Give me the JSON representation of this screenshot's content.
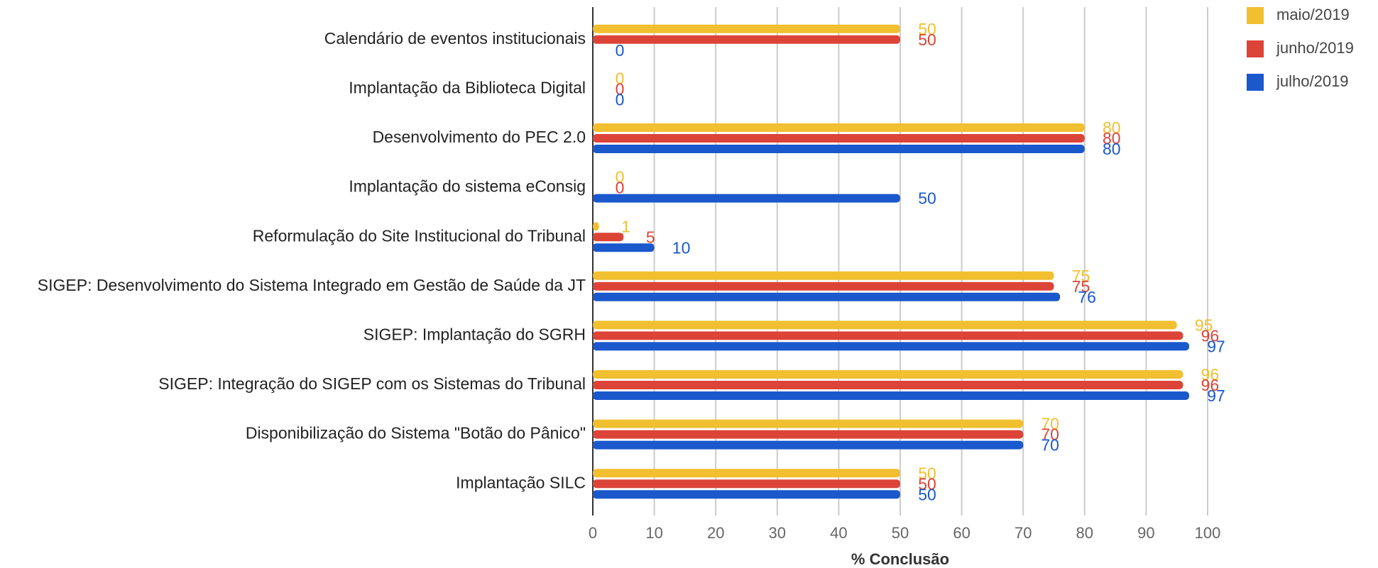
{
  "chart_data": {
    "type": "hbar",
    "categories": [
      "Calendário de eventos institucionais",
      "Implantação da Biblioteca Digital",
      "Desenvolvimento do PEC 2.0",
      "Implantação do sistema eConsig",
      "Reformulação do Site Institucional do Tribunal",
      "SIGEP: Desenvolvimento do Sistema Integrado em Gestão de Saúde da JT",
      "SIGEP: Implantação do SGRH",
      "SIGEP: Integração do SIGEP com os Sistemas do Tribunal",
      "Disponibilização do Sistema \"Botão do Pânico\"",
      "Implantação SILC"
    ],
    "series": [
      {
        "name": "maio/2019",
        "color": "#f1bf2f",
        "values": [
          50,
          0,
          80,
          0,
          1,
          75,
          95,
          96,
          70,
          50
        ]
      },
      {
        "name": "junho/2019",
        "color": "#dc4437",
        "values": [
          50,
          0,
          80,
          0,
          5,
          75,
          96,
          96,
          70,
          50
        ]
      },
      {
        "name": "julho/2019",
        "color": "#1a58cc",
        "values": [
          0,
          0,
          80,
          50,
          10,
          76,
          97,
          97,
          70,
          50
        ]
      }
    ],
    "xlabel": "% Conclusão",
    "xlim": [
      0,
      100
    ],
    "xticks": [
      0,
      10,
      20,
      30,
      40,
      50,
      60,
      70,
      80,
      90,
      100
    ],
    "grid": true,
    "legend": "right"
  }
}
